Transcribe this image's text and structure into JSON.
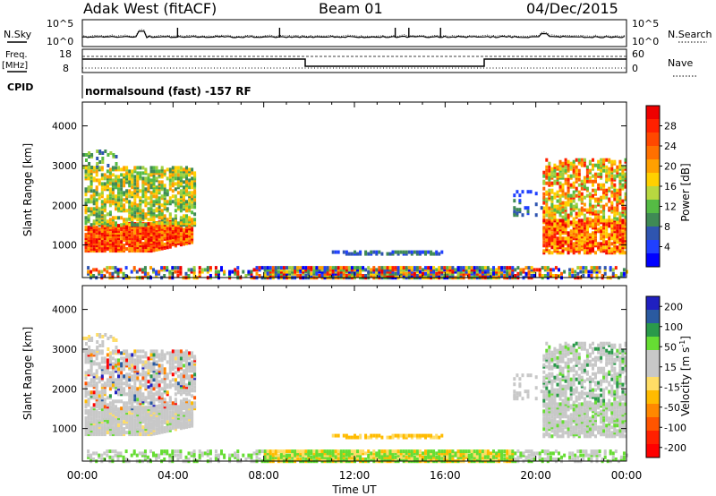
{
  "header": {
    "radar": "Adak West (fitACF)",
    "beam": "Beam 01",
    "date": "04/Dec/2015"
  },
  "top_panel": {
    "left_label": "N.Sky",
    "right_label": "N.Search",
    "ticks_left": [
      "10^5",
      "10^0"
    ],
    "ticks_right": [
      "10^5",
      "10^0"
    ]
  },
  "freq_panel": {
    "left_label_1": "Freq.",
    "left_label_2": "[MHz]",
    "right_label": "Nave",
    "ticks_left": [
      "18",
      "8"
    ],
    "ticks_right": [
      "60",
      "0"
    ]
  },
  "cpid": {
    "label": "CPID",
    "text": "normalsound (fast) -157 RF"
  },
  "colors": {
    "power": [
      "#0000ff",
      "#2040ff",
      "#2f55b0",
      "#3f8a55",
      "#55bb44",
      "#a0d040",
      "#ffd000",
      "#ffa000",
      "#ff6000",
      "#ff2000",
      "#ee0000"
    ],
    "velocity": [
      "#ff0000",
      "#ff5500",
      "#ff8800",
      "#ffbb00",
      "#ffdd66",
      "#c8c8c8",
      "#66dd33",
      "#2a9a4a",
      "#2a5aa0",
      "#2020c0"
    ]
  },
  "chart_data": [
    {
      "type": "heatmap",
      "name": "power",
      "ylabel": "Slant Range [km]",
      "xlabel": "",
      "ylim": [
        180,
        4600
      ],
      "xlim": [
        0,
        24
      ],
      "yticks": [
        "1000",
        "2000",
        "3000",
        "4000"
      ],
      "yvals": [
        1000,
        2000,
        3000,
        4000
      ],
      "xticks": [
        "00:00",
        "04:00",
        "08:00",
        "12:00",
        "16:00",
        "20:00",
        "00:00"
      ],
      "xvals": [
        0,
        4,
        8,
        12,
        16,
        20,
        24
      ],
      "colorbar_label": "Power [dB]",
      "colorbar_ticks": [
        "28",
        "24",
        "20",
        "16",
        "12",
        "8",
        "4"
      ],
      "colorbar_values": [
        28,
        24,
        20,
        16,
        12,
        8,
        4
      ],
      "colorbar_range": [
        0,
        32
      ]
    },
    {
      "type": "heatmap",
      "name": "velocity",
      "ylabel": "Slant Range [km]",
      "xlabel": "Time UT",
      "ylim": [
        180,
        4600
      ],
      "xlim": [
        0,
        24
      ],
      "yticks": [
        "1000",
        "2000",
        "3000",
        "4000"
      ],
      "yvals": [
        1000,
        2000,
        3000,
        4000
      ],
      "xticks": [
        "00:00",
        "04:00",
        "08:00",
        "12:00",
        "16:00",
        "20:00",
        "00:00"
      ],
      "xvals": [
        0,
        4,
        8,
        12,
        16,
        20,
        24
      ],
      "colorbar_label": "Velocity [m s",
      "colorbar_label_exp": "-1",
      "colorbar_label_end": "]",
      "colorbar_ticks": [
        "200",
        "100",
        "50",
        "15",
        "-15",
        "-50",
        "-100",
        "-200"
      ]
    }
  ]
}
